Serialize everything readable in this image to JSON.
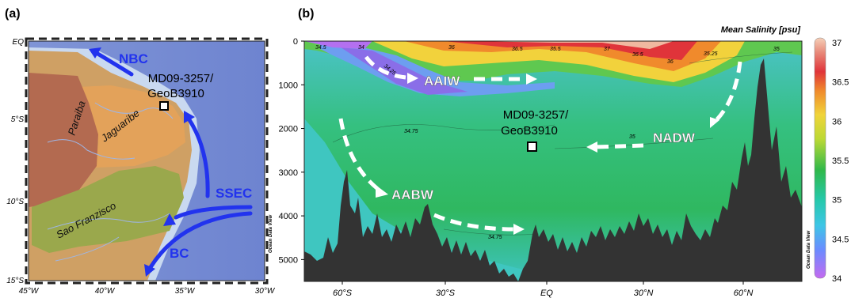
{
  "figure": {
    "panel_a_label": "(a)",
    "panel_b_label": "(b)",
    "ocean_data_view": "Ocean Data View"
  },
  "map": {
    "lat_ticks": [
      "EQ",
      "5°S",
      "10°S",
      "15°S"
    ],
    "lon_ticks": [
      "45°W",
      "40°W",
      "35°W",
      "30°W"
    ],
    "basins": [
      "Paraiba",
      "Jaguaribe",
      "Sao Franzisco"
    ],
    "currents": [
      "NBC",
      "SSEC",
      "BC"
    ],
    "site": [
      "MD09-3257/",
      "GeoB3910"
    ]
  },
  "section": {
    "colorbar_title": "Mean Salinity [psu]",
    "colorbar_ticks": [
      "34",
      "34.5",
      "35",
      "35.5",
      "36",
      "36.5",
      "37"
    ],
    "colorbar_range": [
      34,
      37
    ],
    "depth_ticks": [
      "0",
      "1000",
      "2000",
      "3000",
      "4000",
      "5000"
    ],
    "depth_values": [
      0,
      1000,
      2000,
      3000,
      4000,
      5000
    ],
    "lat_ticks": [
      "60°S",
      "30°S",
      "EQ",
      "30°N",
      "60°N"
    ],
    "water_masses": [
      "AAIW",
      "NADW",
      "AABW"
    ],
    "site": [
      "MD09-3257/",
      "GeoB3910"
    ],
    "contour_labels": [
      "34.5",
      "34",
      "34.25",
      "36",
      "36.5",
      "35.5",
      "37",
      "36.5",
      "36",
      "35.25",
      "35",
      "34.75",
      "35",
      "34.75"
    ]
  },
  "colors": {
    "current_arrow": "#2233ee",
    "water_mass_arrow": "#ffffff",
    "seafloor": "#333333"
  }
}
